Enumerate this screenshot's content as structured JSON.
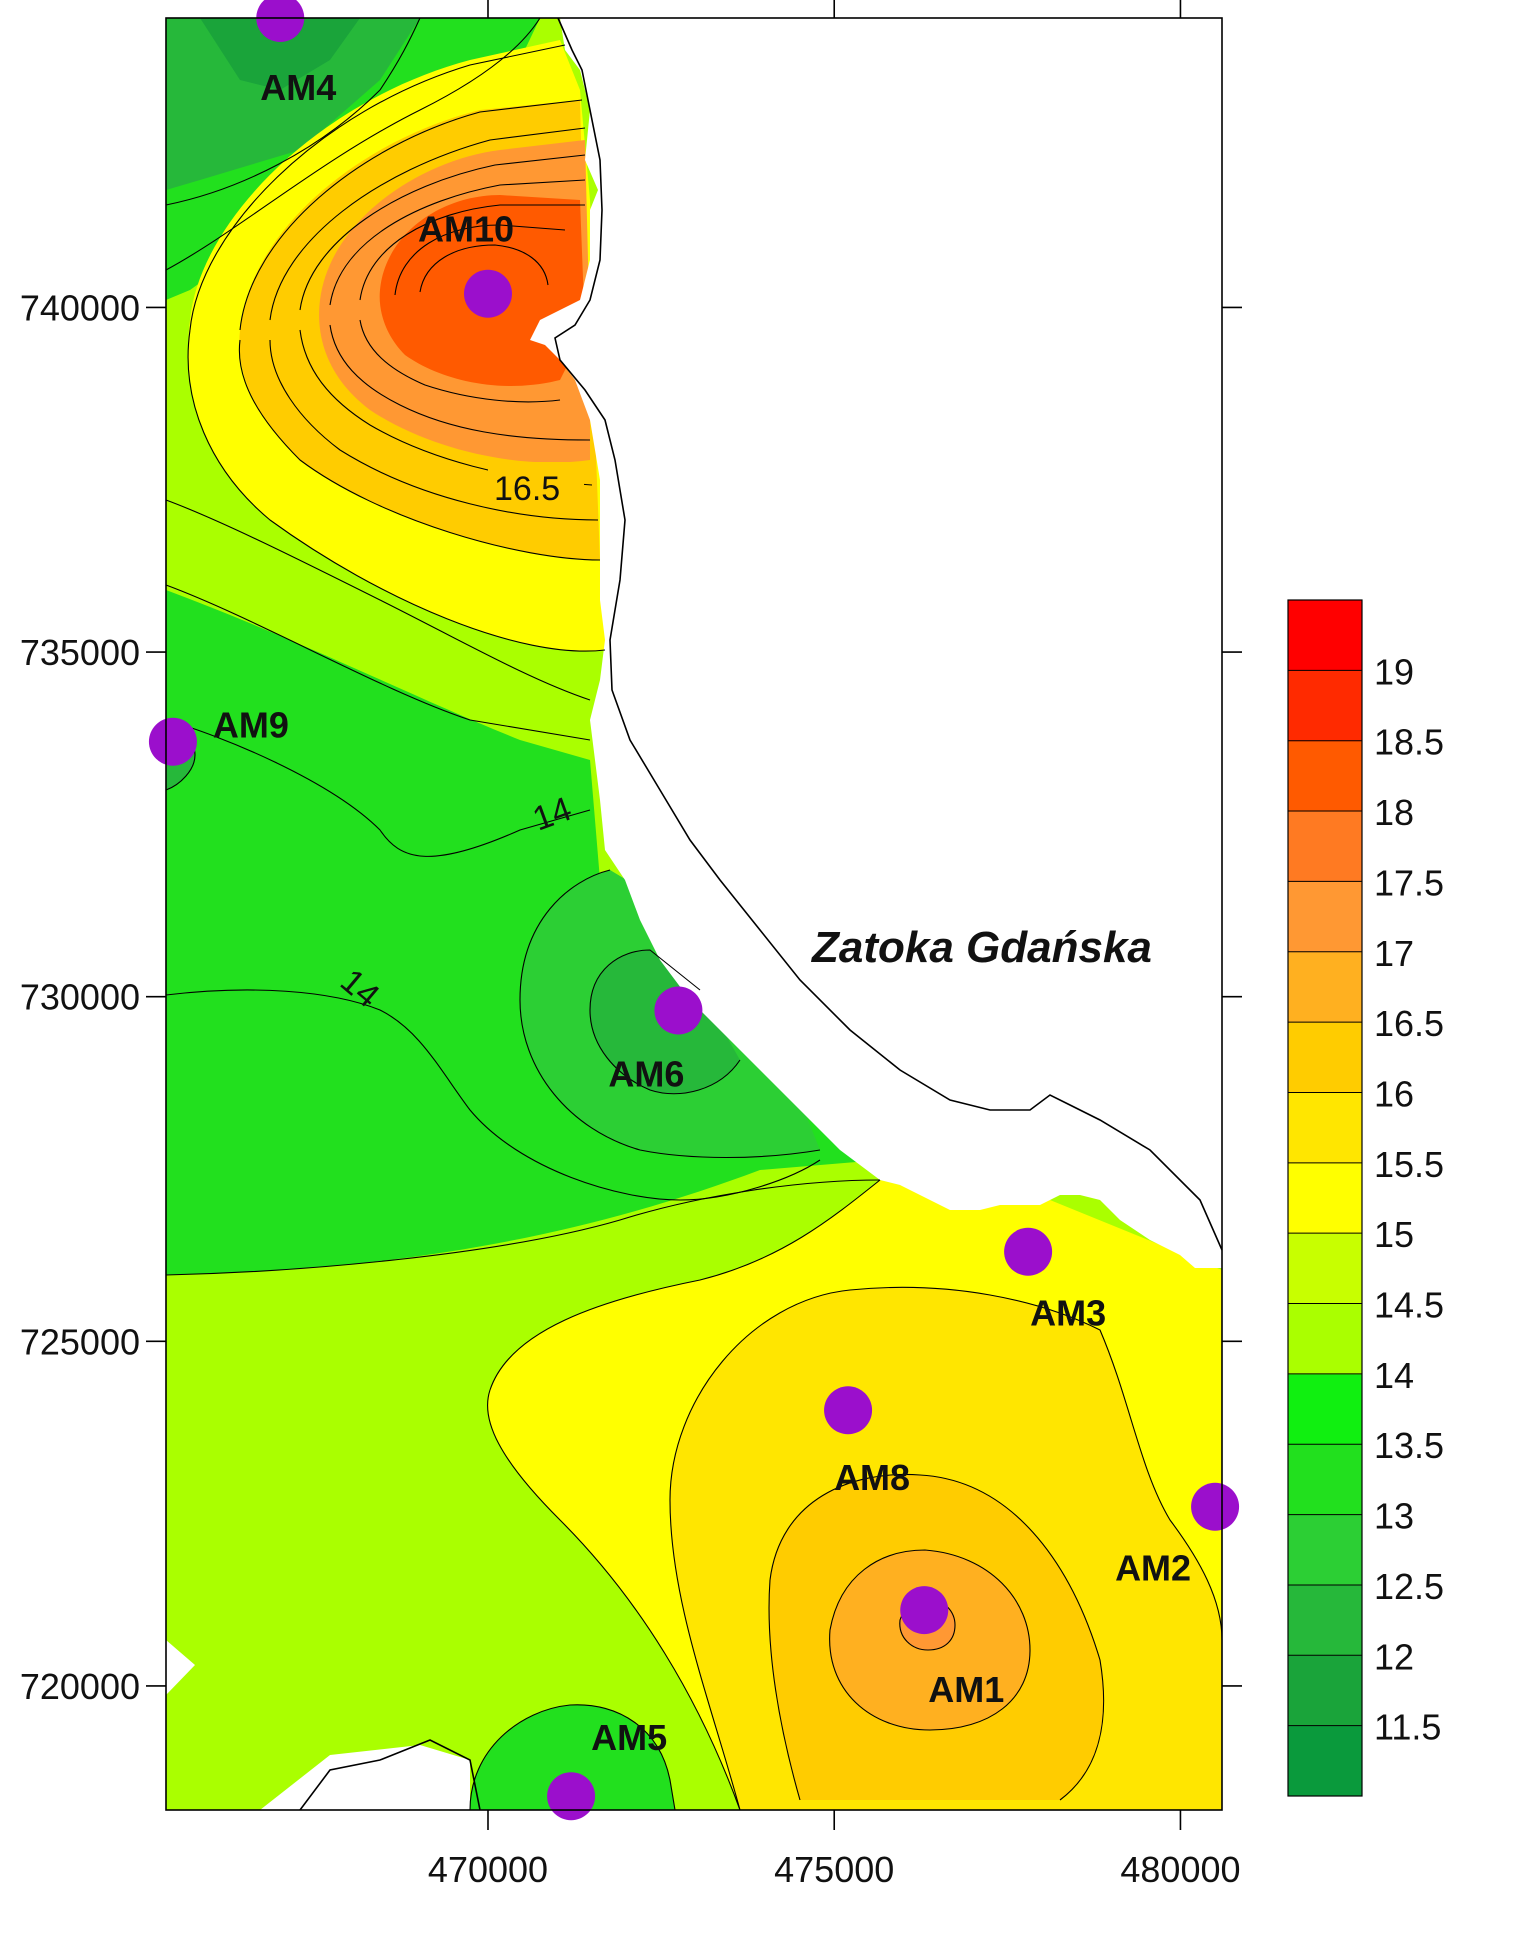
{
  "map": {
    "sea_label": "Zatoka Gdańska",
    "x_axis": {
      "ticks": [
        470000,
        475000,
        480000
      ]
    },
    "y_axis": {
      "ticks": [
        740000,
        735000,
        730000,
        725000,
        720000
      ]
    },
    "extent": {
      "x": [
        465350,
        480600
      ],
      "y": [
        718200,
        744200
      ]
    },
    "contour_labels": [
      "16.5",
      "14",
      "14"
    ],
    "colors": {
      "coast_line": "#000000",
      "station": "#9b0fcc",
      "sea": "#ffffff"
    }
  },
  "stations": [
    {
      "name": "AM4",
      "x": 467000,
      "y": 744200
    },
    {
      "name": "AM10",
      "x": 470000,
      "y": 740200
    },
    {
      "name": "AM9",
      "x": 465450,
      "y": 733700
    },
    {
      "name": "AM6",
      "x": 472750,
      "y": 729800
    },
    {
      "name": "AM3",
      "x": 477800,
      "y": 726300
    },
    {
      "name": "AM8",
      "x": 475200,
      "y": 724000
    },
    {
      "name": "AM2",
      "x": 480500,
      "y": 722600
    },
    {
      "name": "AM1",
      "x": 476300,
      "y": 721100
    },
    {
      "name": "AM5",
      "x": 471200,
      "y": 718400
    }
  ],
  "legend": {
    "levels": [
      11.5,
      12,
      12.5,
      13,
      13.5,
      14,
      14.5,
      15,
      15.5,
      16,
      16.5,
      17,
      17.5,
      18,
      18.5,
      19,
      19.5
    ],
    "labels": [
      "19",
      "18.5",
      "18",
      "17.5",
      "17",
      "16.5",
      "16",
      "15.5",
      "15",
      "14.5",
      "14",
      "13.5",
      "13",
      "12.5",
      "12",
      "11.5"
    ],
    "colors": [
      "#0a9a3c",
      "#1aa43a",
      "#26b83a",
      "#2ccf34",
      "#22e01e",
      "#10f010",
      "#aaff00",
      "#c8ff00",
      "#ffff00",
      "#ffe600",
      "#ffcc00",
      "#ffb020",
      "#ff9833",
      "#ff7a22",
      "#ff5a00",
      "#ff2a00",
      "#ff0000"
    ]
  }
}
